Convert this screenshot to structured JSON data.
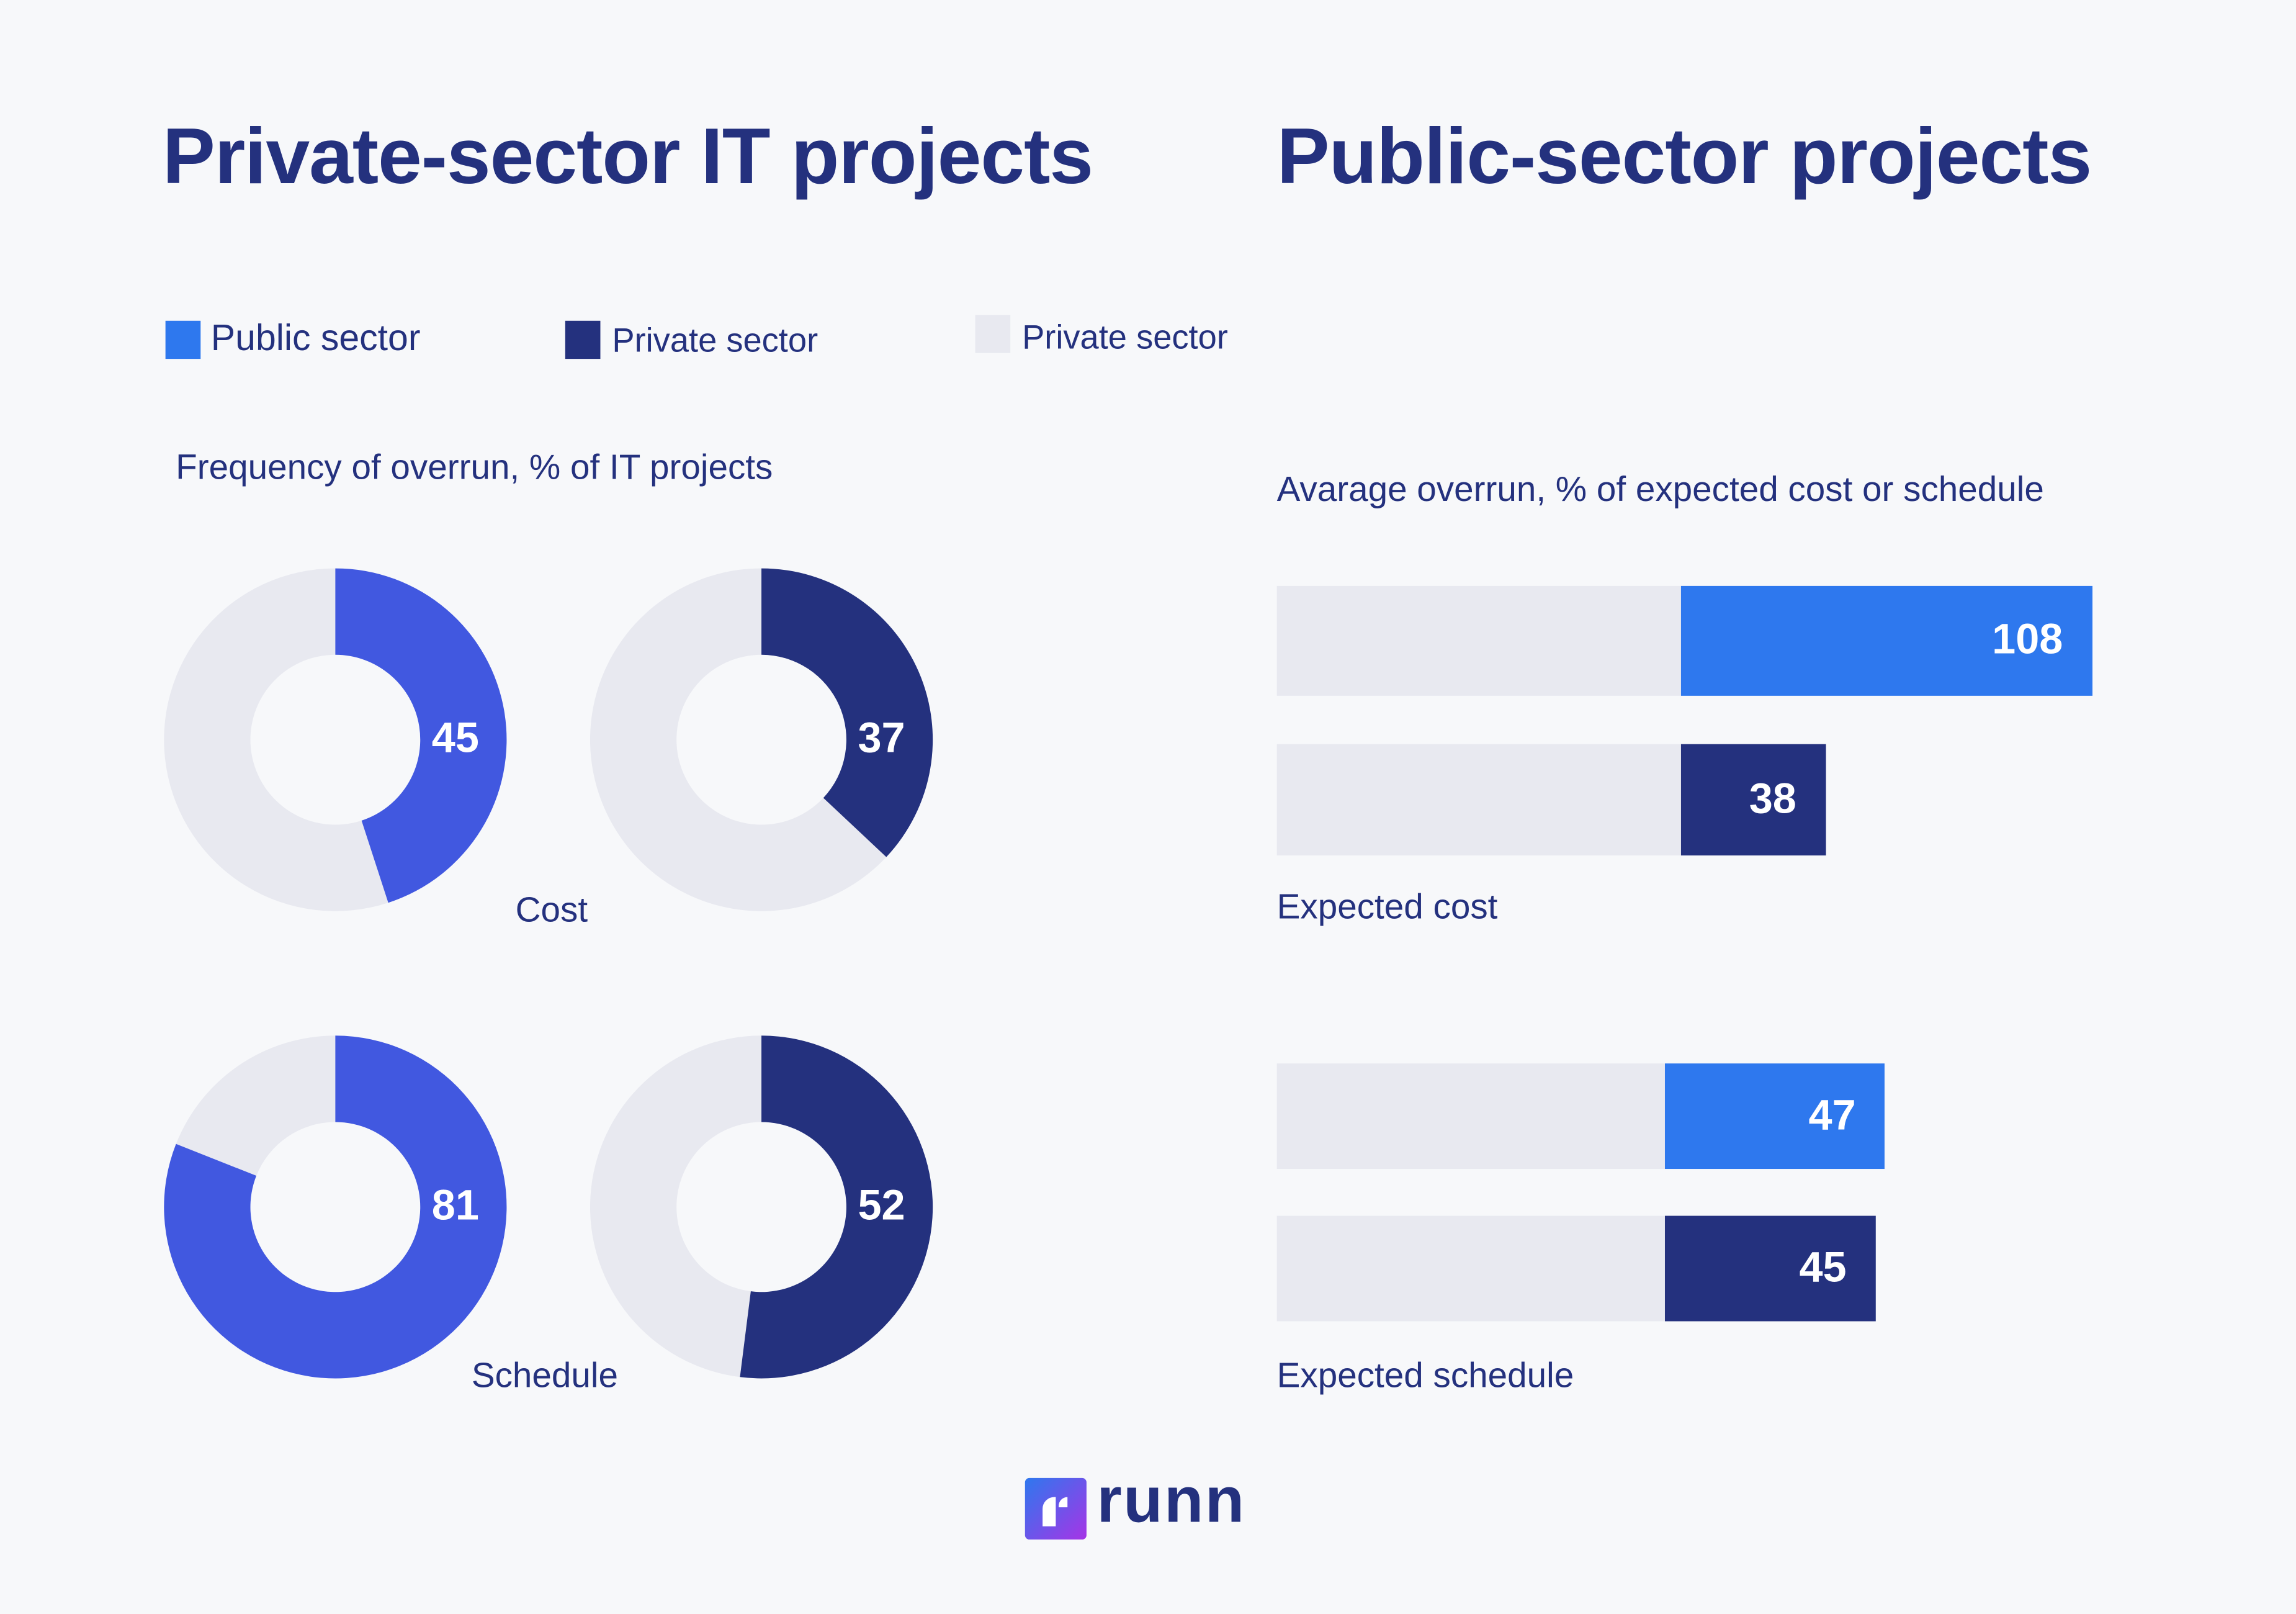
{
  "titles": {
    "left": "Private-sector IT projects",
    "right": "Public-sector projects"
  },
  "legend": [
    {
      "label": "Public sector",
      "color": "#2e78ee"
    },
    {
      "label": "Private sector",
      "color": "#24317e"
    },
    {
      "label": "Private sector",
      "color": "#e8e9f0"
    }
  ],
  "colors": {
    "donut_public": "#4158e0",
    "donut_private": "#24317e",
    "bar_public": "#2e78ee",
    "bar_private": "#24317e",
    "track": "#e8e9f0",
    "background": "#f7f8fa"
  },
  "chart_data": [
    {
      "type": "pie",
      "subtitle": "Frequency of overrun, % of IT projects",
      "groups": [
        {
          "label": "Cost",
          "values": [
            45,
            37
          ]
        },
        {
          "label": "Schedule",
          "values": [
            81,
            52
          ]
        }
      ]
    },
    {
      "type": "bar",
      "subtitle": "Avarage overrun, % of expected cost or schedule",
      "groups": [
        {
          "label": "Expected cost",
          "values": [
            108,
            38
          ]
        },
        {
          "label": "Expected schedule",
          "values": [
            47,
            45
          ]
        }
      ]
    }
  ],
  "brand": {
    "name": "runn"
  }
}
